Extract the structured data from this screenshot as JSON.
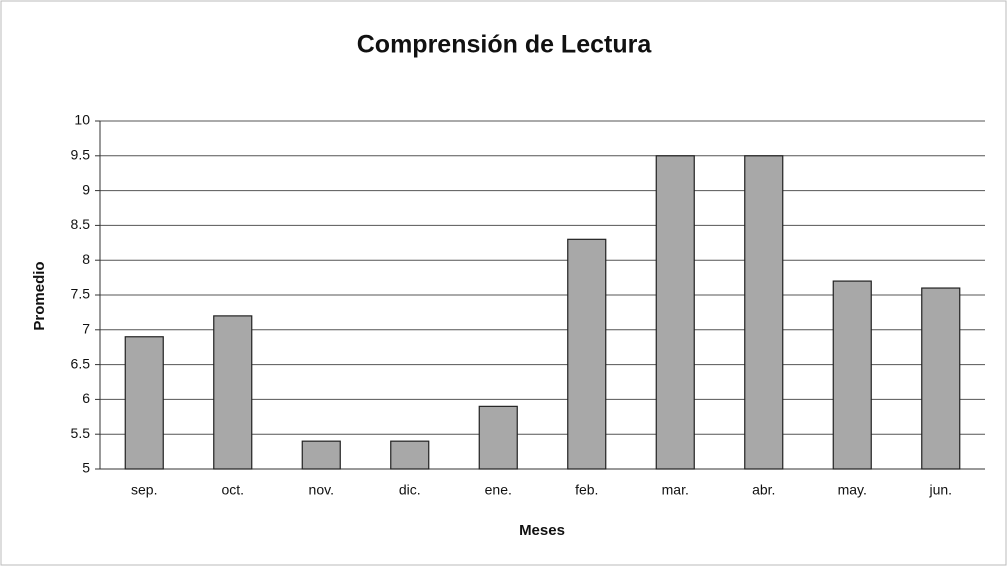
{
  "chart_data": {
    "type": "bar",
    "title": "Comprensión de Lectura",
    "xlabel": "Meses",
    "ylabel": "Promedio",
    "categories": [
      "sep.",
      "oct.",
      "nov.",
      "dic.",
      "ene.",
      "feb.",
      "mar.",
      "abr.",
      "may.",
      "jun."
    ],
    "values": [
      6.9,
      7.2,
      5.4,
      5.4,
      5.9,
      8.3,
      9.5,
      9.5,
      7.7,
      7.6
    ],
    "color": "#a8a8a8",
    "ylim": [
      5,
      10
    ],
    "yticks": [
      5,
      5.5,
      6,
      6.5,
      7,
      7.5,
      8,
      8.5,
      9,
      9.5,
      10
    ],
    "grid": true
  }
}
